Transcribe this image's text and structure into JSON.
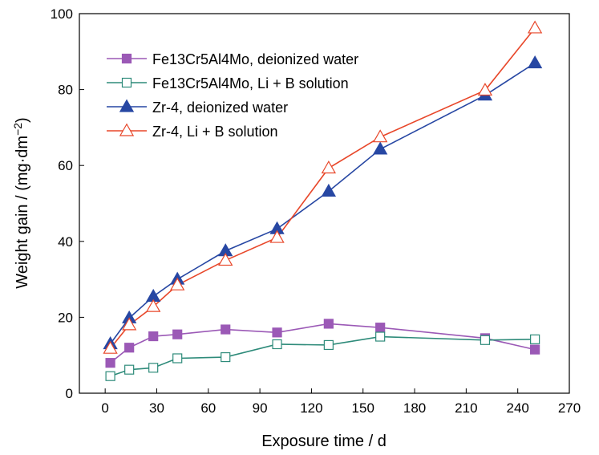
{
  "chart_data": {
    "type": "line",
    "xlabel": "Exposure time / d",
    "ylabel": "Weight gain / (mg·dm",
    "ylabel_exp": "−2",
    "ylabel_close": ")",
    "xlim": [
      -15,
      270
    ],
    "ylim": [
      0,
      100
    ],
    "xticks": [
      0,
      30,
      60,
      90,
      120,
      150,
      180,
      210,
      240,
      270
    ],
    "yticks": [
      0,
      20,
      40,
      60,
      80,
      100
    ],
    "grid": false,
    "legend_position": "top-left",
    "series": [
      {
        "name": "Fe13Cr5Al4Mo, deionized water",
        "color": "#9b59b6",
        "marker": "square-filled",
        "x": [
          3,
          14,
          28,
          42,
          70,
          100,
          130,
          160,
          221,
          250
        ],
        "y": [
          8,
          12,
          15,
          15.5,
          16.8,
          16,
          18.3,
          17.3,
          14.5,
          11.5
        ]
      },
      {
        "name": "Fe13Cr5Al4Mo, Li + B solution",
        "color": "#2e8b7a",
        "marker": "square-open",
        "x": [
          3,
          14,
          28,
          42,
          70,
          100,
          130,
          160,
          221,
          250
        ],
        "y": [
          4.5,
          6.2,
          6.7,
          9.2,
          9.5,
          12.9,
          12.7,
          14.9,
          14,
          14.2
        ]
      },
      {
        "name": "Zr-4, deionized water",
        "color": "#2747a3",
        "marker": "triangle-filled",
        "x": [
          3,
          14,
          28,
          42,
          70,
          100,
          130,
          160,
          221,
          250
        ],
        "y": [
          13,
          19.8,
          25.5,
          30,
          37.5,
          43.3,
          53.2,
          64.3,
          78.5,
          87
        ]
      },
      {
        "name": "Zr-4, Li + B solution",
        "color": "#e8472a",
        "marker": "triangle-open",
        "x": [
          3,
          14,
          28,
          42,
          70,
          100,
          130,
          160,
          221,
          250
        ],
        "y": [
          11.8,
          18,
          22.8,
          28.5,
          35,
          41,
          59.3,
          67.5,
          79.8,
          96.2
        ]
      }
    ]
  }
}
